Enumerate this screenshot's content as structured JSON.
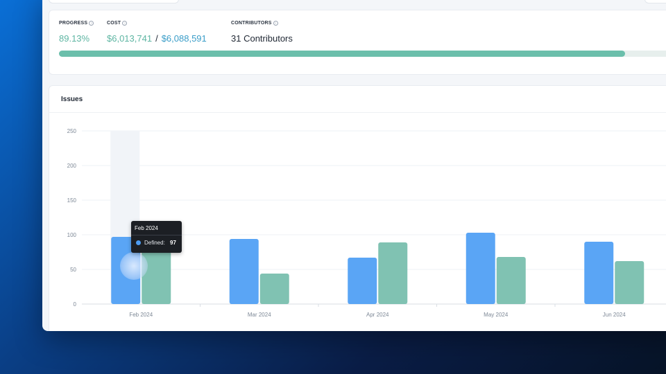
{
  "stats": {
    "progress": {
      "label": "PROGRESS",
      "value": "89.13%",
      "fraction": 0.8913
    },
    "cost": {
      "label": "COST",
      "spent": "$6,013,741",
      "separator": "/",
      "budget": "$6,088,591"
    },
    "contributors": {
      "label": "CONTRIBUTORS",
      "value": "31 Contributors"
    }
  },
  "issues": {
    "title": "Issues"
  },
  "chart_data": {
    "type": "bar",
    "title": "Issues",
    "categories": [
      "Feb 2024",
      "Mar 2024",
      "Apr 2024",
      "May 2024",
      "Jun 2024"
    ],
    "series": [
      {
        "name": "Defined",
        "color": "#5aa5f5",
        "values": [
          97,
          94,
          67,
          103,
          90
        ]
      },
      {
        "color": "#80c2b2",
        "values": [
          88,
          44,
          89,
          68,
          62
        ]
      }
    ],
    "ylim": [
      0,
      250
    ],
    "yticks": [
      0,
      50,
      100,
      150,
      200,
      250
    ],
    "grid": true,
    "hover_category": "Feb 2024"
  },
  "tooltip": {
    "title": "Feb 2024",
    "label": "Defined:",
    "value": "97",
    "color": "#4d9cf2"
  }
}
